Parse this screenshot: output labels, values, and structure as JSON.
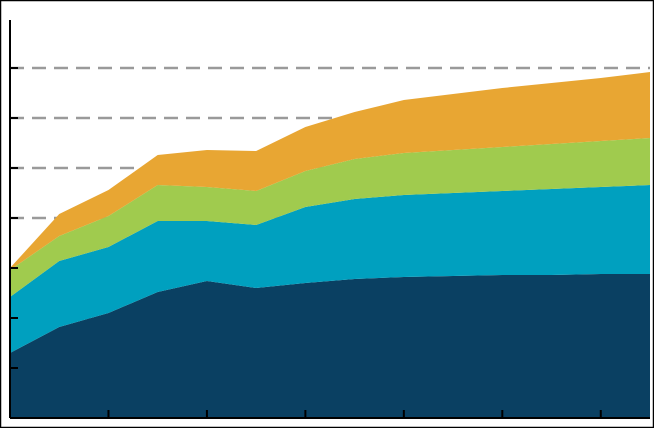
{
  "chart_data": {
    "type": "stacked_area",
    "x": [
      0,
      1,
      2,
      3,
      4,
      5,
      6,
      7,
      8,
      9,
      10,
      11,
      12,
      13
    ],
    "series": [
      {
        "color": "#0a4062",
        "values": [
          1.3,
          1.82,
          2.1,
          2.52,
          2.74,
          2.6,
          2.7,
          2.78,
          2.82,
          2.84,
          2.86,
          2.86,
          2.88,
          2.88
        ]
      },
      {
        "color": "#00a0bf",
        "values": [
          1.12,
          1.32,
          1.32,
          1.42,
          1.2,
          1.26,
          1.52,
          1.6,
          1.64,
          1.66,
          1.68,
          1.72,
          1.74,
          1.78
        ]
      },
      {
        "color": "#a0cb4e",
        "values": [
          0.54,
          0.5,
          0.62,
          0.72,
          0.68,
          0.68,
          0.72,
          0.8,
          0.84,
          0.86,
          0.88,
          0.9,
          0.92,
          0.94
        ]
      },
      {
        "color": "#e8a633",
        "values": [
          0.04,
          0.44,
          0.52,
          0.6,
          0.74,
          0.8,
          0.88,
          0.94,
          1.06,
          1.12,
          1.18,
          1.22,
          1.26,
          1.32
        ]
      }
    ],
    "xlim": [
      0,
      13
    ],
    "xticks": [
      2,
      4,
      6,
      8,
      10,
      12
    ],
    "ylim": [
      0,
      8
    ],
    "yticks": [
      1,
      2,
      3,
      4,
      5,
      6,
      7
    ],
    "grid": true
  }
}
